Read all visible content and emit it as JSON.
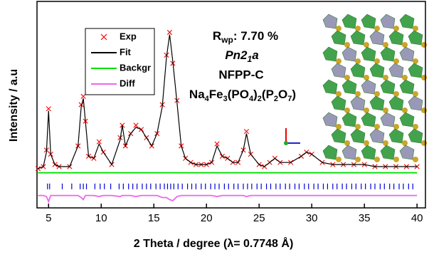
{
  "chart_data": {
    "type": "rietveld",
    "xlabel": "2 Theta / degree (λ= 0.7748 Å)",
    "ylabel": "Intensity / a.u",
    "xlim": [
      3.9,
      40.8
    ],
    "ylim": [
      0,
      100
    ],
    "xticks": [
      5,
      10,
      15,
      20,
      25,
      30,
      35,
      40
    ],
    "x": [
      4,
      4.5,
      4.8,
      5,
      5.2,
      5.6,
      6,
      7,
      7.8,
      8.1,
      8.3,
      8.5,
      8.8,
      9.3,
      9.8,
      10.2,
      11,
      11.8,
      12,
      12.3,
      12.8,
      13.3,
      13.8,
      14.3,
      14.8,
      15.3,
      15.8,
      16.2,
      16.5,
      16.8,
      17.2,
      17.6,
      18,
      18.5,
      19,
      19.5,
      20,
      20.5,
      21,
      21.5,
      22,
      22.5,
      23,
      23.5,
      23.8,
      24.2,
      25,
      25.5,
      26,
      26.5,
      27,
      28,
      29,
      29.5,
      30,
      31,
      32,
      33,
      34,
      35,
      36,
      37,
      38,
      39,
      40
    ],
    "series": [
      {
        "name": "Exp",
        "color": "#ff0000",
        "marker": "x",
        "values": [
          19,
          20,
          28,
          48,
          26,
          21,
          20,
          20,
          30,
          50,
          54,
          42,
          25,
          24,
          32,
          27,
          21,
          34,
          40,
          30,
          36,
          40,
          38,
          34,
          30,
          36,
          50,
          74,
          85,
          70,
          52,
          30,
          24,
          22,
          21,
          21,
          21,
          22,
          31,
          25,
          24,
          22,
          22,
          28,
          37,
          26,
          21,
          20,
          22,
          24,
          22,
          22,
          25,
          27,
          26,
          22,
          21,
          21,
          21,
          21,
          20,
          20,
          20,
          20,
          20
        ]
      },
      {
        "name": "Fit",
        "color": "#000000",
        "marker": "line",
        "values": [
          19,
          20,
          27,
          47,
          26,
          21,
          20,
          20,
          30,
          49,
          53,
          42,
          25,
          24,
          31,
          27,
          21,
          33,
          40,
          30,
          36,
          39,
          38,
          34,
          30,
          36,
          49,
          73,
          84,
          71,
          51,
          30,
          24,
          22,
          21,
          21,
          21,
          22,
          30,
          25,
          24,
          22,
          22,
          28,
          36,
          26,
          21,
          20,
          22,
          24,
          22,
          22,
          25,
          27,
          26,
          22,
          21,
          21,
          21,
          21,
          20,
          20,
          20,
          20,
          20
        ]
      },
      {
        "name": "Backgr",
        "color": "#00e000",
        "marker": "line",
        "x": [
          4,
          40
        ],
        "values": [
          17,
          17
        ]
      },
      {
        "name": "Diff",
        "color": "#ee66ee",
        "marker": "line",
        "values": [
          6,
          6,
          5.5,
          3,
          6,
          6,
          6,
          6,
          6,
          5,
          4,
          6,
          6,
          6,
          5.5,
          6,
          6,
          5.5,
          6,
          6,
          6,
          5.5,
          6,
          6,
          6,
          6,
          5,
          5,
          4,
          3.5,
          5.5,
          6,
          6,
          6,
          6,
          6,
          6,
          6,
          5.5,
          6,
          6,
          6,
          6,
          6,
          5.5,
          6,
          6,
          6,
          6,
          6,
          6,
          6,
          6,
          6,
          6,
          6,
          6,
          6,
          6,
          6,
          6,
          6,
          6,
          6,
          6
        ]
      }
    ],
    "bragg": {
      "color": "#0000dd",
      "level": 10.4,
      "positions": [
        4.9,
        5.1,
        6.3,
        7.2,
        8.0,
        8.3,
        8.6,
        9.4,
        9.9,
        10.3,
        10.9,
        11.7,
        12.1,
        12.6,
        13.0,
        13.4,
        13.9,
        14.3,
        14.7,
        15.2,
        15.6,
        16.0,
        16.3,
        16.6,
        16.9,
        17.3,
        17.7,
        18.2,
        18.6,
        19.0,
        19.5,
        19.9,
        20.4,
        20.8,
        21.2,
        21.7,
        22.1,
        22.6,
        23.0,
        23.5,
        23.9,
        24.3,
        24.8,
        25.2,
        25.7,
        26.1,
        26.6,
        27.0,
        27.5,
        27.9,
        28.4,
        28.8,
        29.3,
        29.7,
        30.2,
        30.6,
        31.1,
        31.5,
        32.0,
        32.4,
        32.9,
        33.3,
        33.8,
        34.2,
        34.7,
        35.1,
        35.6,
        36.0,
        36.5,
        36.9,
        37.4,
        37.8,
        38.3,
        38.7,
        39.2,
        39.6
      ]
    },
    "annotations": {
      "rwp": [
        "R",
        "wp",
        ": 7.70 %"
      ],
      "space_group": [
        "Pn2",
        "1",
        "a"
      ],
      "sample": "NFPP-C",
      "formula": [
        "Na",
        "4",
        "Fe",
        "3",
        "(PO",
        "4",
        ")",
        "2",
        "(P",
        "2",
        "O",
        "7",
        ")"
      ]
    }
  }
}
